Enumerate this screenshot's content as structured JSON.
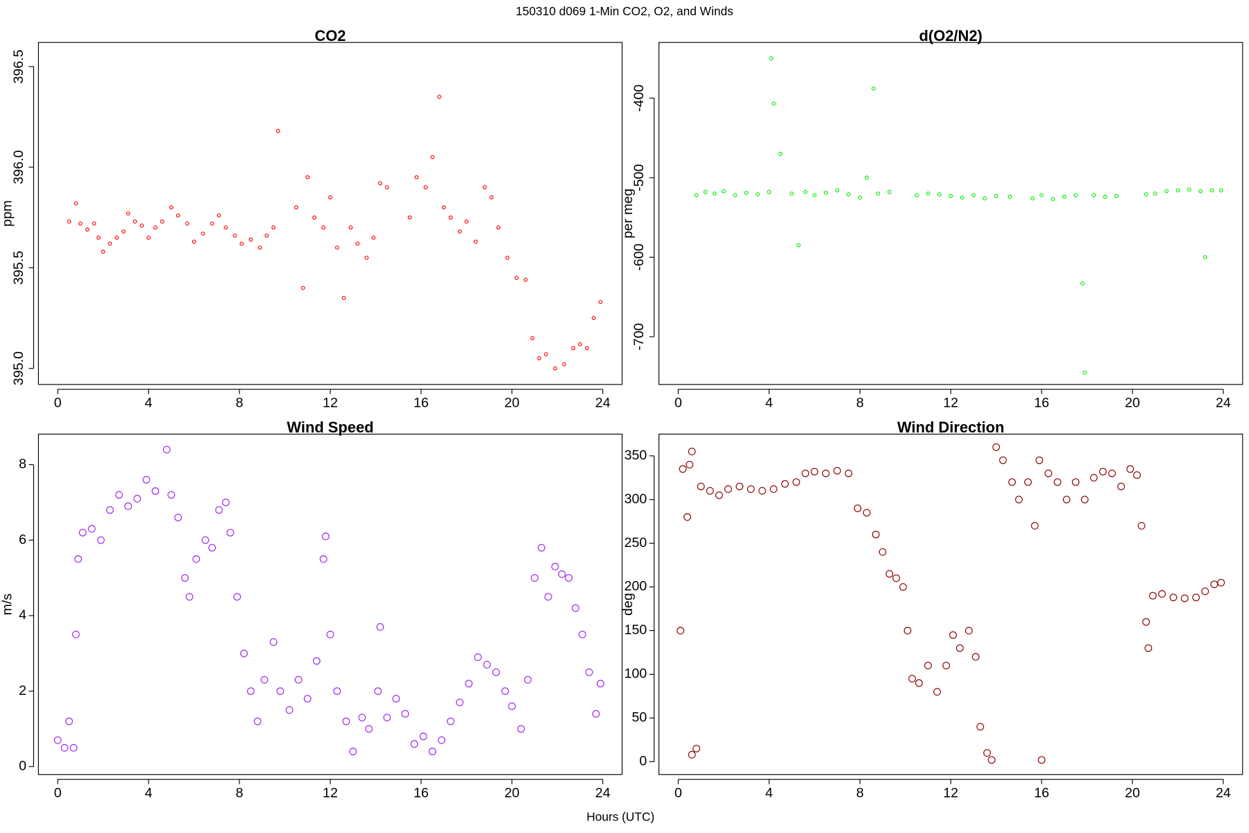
{
  "title": "150310   d069   1-Min CO2, O2, and Winds",
  "xlabel": "Hours (UTC)",
  "chart_data": [
    {
      "type": "scatter",
      "title": "CO2",
      "ylabel": "ppm",
      "color": "#ff0000",
      "xlim": [
        -0.85,
        24.85
      ],
      "xticks": [
        0,
        4,
        8,
        12,
        16,
        20,
        24
      ],
      "ylim": [
        394.92,
        396.62
      ],
      "yticks": [
        {
          "value": 395,
          "label": "395.0"
        },
        395.5,
        {
          "value": 396,
          "label": "396.0"
        },
        396.5
      ],
      "x": [
        0.5,
        0.8,
        1.0,
        1.3,
        1.6,
        1.8,
        2.0,
        2.3,
        2.6,
        2.9,
        3.1,
        3.4,
        3.7,
        4.0,
        4.3,
        4.6,
        5.0,
        5.3,
        5.7,
        6.0,
        6.4,
        6.8,
        7.1,
        7.4,
        7.8,
        8.1,
        8.5,
        8.9,
        9.2,
        9.5,
        9.7,
        10.5,
        10.8,
        11.0,
        11.3,
        11.7,
        12.0,
        12.3,
        12.6,
        12.9,
        13.2,
        13.6,
        13.9,
        14.2,
        14.5,
        15.5,
        15.8,
        16.2,
        16.5,
        16.8,
        17.0,
        17.3,
        17.7,
        18.0,
        18.4,
        18.8,
        19.1,
        19.4,
        19.8,
        20.2,
        20.6,
        20.9,
        21.2,
        21.5,
        21.9,
        22.3,
        22.7,
        23.0,
        23.3,
        23.6,
        23.9
      ],
      "values": [
        395.73,
        395.82,
        395.72,
        395.69,
        395.72,
        395.65,
        395.58,
        395.62,
        395.65,
        395.68,
        395.77,
        395.73,
        395.71,
        395.65,
        395.7,
        395.73,
        395.8,
        395.76,
        395.72,
        395.63,
        395.67,
        395.72,
        395.76,
        395.7,
        395.66,
        395.62,
        395.64,
        395.6,
        395.66,
        395.7,
        396.18,
        395.8,
        395.4,
        395.95,
        395.75,
        395.7,
        395.85,
        395.6,
        395.35,
        395.7,
        395.62,
        395.55,
        395.65,
        395.92,
        395.9,
        395.75,
        395.95,
        395.9,
        396.05,
        396.35,
        395.8,
        395.75,
        395.68,
        395.73,
        395.63,
        395.9,
        395.85,
        395.7,
        395.55,
        395.45,
        395.44,
        395.15,
        395.05,
        395.07,
        395.0,
        395.02,
        395.1,
        395.12,
        395.1,
        395.25,
        395.33
      ]
    },
    {
      "type": "scatter",
      "title": "d(O2/N2)",
      "ylabel": "per meg",
      "color": "#00ee00",
      "xlim": [
        -0.85,
        24.85
      ],
      "xticks": [
        0,
        4,
        8,
        12,
        16,
        20,
        24
      ],
      "ylim": [
        -760,
        -330
      ],
      "yticks": [
        -700,
        -600,
        -500,
        -400
      ],
      "x": [
        0.8,
        1.2,
        1.6,
        2.0,
        2.5,
        3.0,
        3.5,
        4.0,
        4.1,
        4.2,
        4.5,
        5.0,
        5.3,
        5.6,
        6.0,
        6.5,
        7.0,
        7.5,
        8.0,
        8.3,
        8.6,
        8.8,
        9.3,
        10.5,
        11.0,
        11.5,
        12.0,
        12.5,
        13.0,
        13.5,
        14.0,
        14.6,
        15.6,
        16.0,
        16.5,
        17.0,
        17.5,
        17.8,
        17.9,
        18.3,
        18.8,
        19.3,
        20.6,
        21.0,
        21.5,
        22.0,
        22.5,
        23.0,
        23.2,
        23.5,
        23.9
      ],
      "values": [
        -522,
        -518,
        -520,
        -517,
        -522,
        -519,
        -521,
        -518,
        -350,
        -407,
        -470,
        -520,
        -585,
        -518,
        -522,
        -519,
        -516,
        -521,
        -525,
        -500,
        -388,
        -520,
        -518,
        -522,
        -520,
        -521,
        -523,
        -525,
        -522,
        -526,
        -523,
        -524,
        -526,
        -522,
        -527,
        -524,
        -522,
        -633,
        -745,
        -522,
        -524,
        -523,
        -521,
        -520,
        -517,
        -516,
        -515,
        -517,
        -600,
        -516,
        -516
      ]
    },
    {
      "type": "scatter",
      "title": "Wind Speed",
      "ylabel": "m/s",
      "color": "#a020f0",
      "xlim": [
        -0.85,
        24.85
      ],
      "xticks": [
        0,
        4,
        8,
        12,
        16,
        20,
        24
      ],
      "ylim": [
        -0.21,
        8.81
      ],
      "yticks": [
        0,
        2,
        4,
        6,
        8
      ],
      "x": [
        0,
        0.3,
        0.5,
        0.7,
        0.8,
        0.9,
        1.1,
        1.5,
        1.9,
        2.3,
        2.7,
        3.1,
        3.5,
        3.9,
        4.3,
        4.8,
        5.0,
        5.3,
        5.6,
        5.8,
        6.1,
        6.5,
        6.8,
        7.1,
        7.4,
        7.6,
        7.9,
        8.2,
        8.5,
        8.8,
        9.1,
        9.5,
        9.8,
        10.2,
        10.6,
        11.0,
        11.4,
        11.7,
        11.8,
        12.0,
        12.3,
        12.7,
        13.0,
        13.4,
        13.7,
        14.1,
        14.2,
        14.5,
        14.9,
        15.3,
        15.7,
        16.1,
        16.5,
        16.9,
        17.3,
        17.7,
        18.1,
        18.5,
        18.9,
        19.3,
        19.7,
        20.0,
        20.4,
        20.7,
        21.0,
        21.3,
        21.6,
        21.9,
        22.2,
        22.5,
        22.8,
        23.1,
        23.4,
        23.7,
        23.9
      ],
      "values": [
        0.7,
        0.5,
        1.2,
        0.5,
        3.5,
        5.5,
        6.2,
        6.3,
        6.0,
        6.8,
        7.2,
        6.9,
        7.1,
        7.6,
        7.3,
        8.4,
        7.2,
        6.6,
        5.0,
        4.5,
        5.5,
        6.0,
        5.8,
        6.8,
        7.0,
        6.2,
        4.5,
        3.0,
        2.0,
        1.2,
        2.3,
        3.3,
        2.0,
        1.5,
        2.3,
        1.8,
        2.8,
        5.5,
        6.1,
        3.5,
        2.0,
        1.2,
        0.4,
        1.3,
        1.0,
        2.0,
        3.7,
        1.3,
        1.8,
        1.4,
        0.6,
        0.8,
        0.4,
        0.7,
        1.2,
        1.7,
        2.2,
        2.9,
        2.7,
        2.5,
        2.0,
        1.6,
        1.0,
        2.3,
        5.0,
        5.8,
        4.5,
        5.3,
        5.1,
        5.0,
        4.2,
        3.5,
        2.5,
        1.4,
        2.2
      ]
    },
    {
      "type": "scatter",
      "title": "Wind Direction",
      "ylabel": "deg",
      "color": "#8b0000",
      "xlim": [
        -0.85,
        24.85
      ],
      "xticks": [
        0,
        4,
        8,
        12,
        16,
        20,
        24
      ],
      "ylim": [
        -14.7,
        374.9
      ],
      "yticks": [
        0,
        50,
        100,
        150,
        200,
        250,
        300,
        350
      ],
      "x": [
        0.1,
        0.2,
        0.4,
        0.5,
        0.6,
        0.6,
        0.8,
        1.0,
        1.4,
        1.8,
        2.2,
        2.7,
        3.2,
        3.7,
        4.2,
        4.7,
        5.2,
        5.6,
        6.0,
        6.5,
        7.0,
        7.5,
        7.9,
        8.3,
        8.7,
        9.0,
        9.3,
        9.6,
        9.9,
        10.1,
        10.3,
        10.6,
        11.0,
        11.4,
        11.8,
        12.1,
        12.4,
        12.8,
        13.1,
        13.3,
        13.6,
        13.8,
        14.0,
        14.3,
        14.7,
        15.0,
        15.4,
        15.7,
        15.9,
        16.0,
        16.3,
        16.7,
        17.1,
        17.5,
        17.9,
        18.3,
        18.7,
        19.1,
        19.5,
        19.9,
        20.2,
        20.4,
        20.6,
        20.7,
        20.9,
        21.3,
        21.8,
        22.3,
        22.8,
        23.2,
        23.6,
        23.9
      ],
      "values": [
        150,
        335,
        280,
        340,
        355,
        8,
        15,
        315,
        310,
        305,
        312,
        315,
        312,
        310,
        312,
        318,
        320,
        330,
        332,
        330,
        333,
        330,
        290,
        285,
        260,
        240,
        215,
        210,
        200,
        150,
        95,
        90,
        110,
        80,
        110,
        145,
        130,
        150,
        120,
        40,
        10,
        2,
        360,
        345,
        320,
        300,
        320,
        270,
        345,
        2,
        330,
        320,
        300,
        320,
        300,
        325,
        332,
        330,
        315,
        335,
        328,
        270,
        160,
        130,
        190,
        192,
        188,
        187,
        188,
        195,
        203,
        205
      ]
    }
  ]
}
